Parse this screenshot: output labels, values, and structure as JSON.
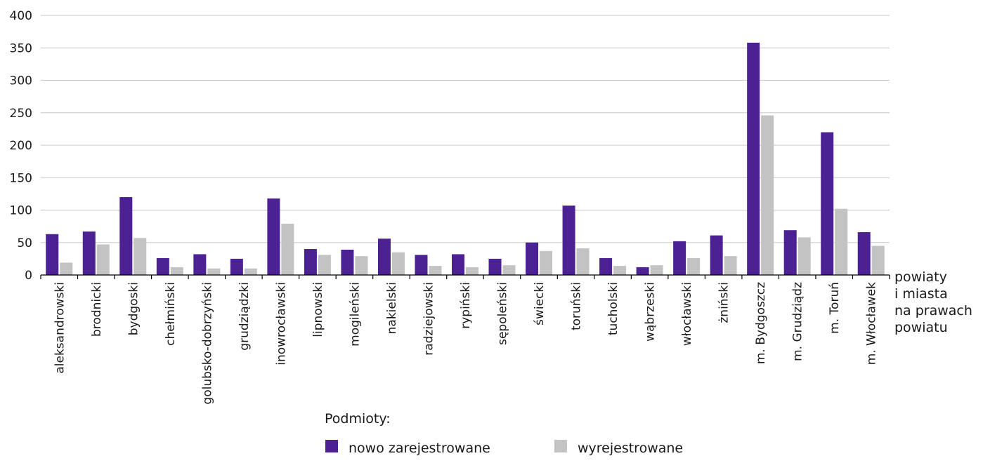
{
  "colors": {
    "series_new": "#4b2193",
    "series_removed": "#c3c3c3",
    "grid": "#c8c8c8",
    "axis": "#000000"
  },
  "chart_data": {
    "type": "bar",
    "title": "",
    "xlabel": [
      "powiaty",
      "i miasta",
      "na prawach",
      "powiatu"
    ],
    "ylabel": "",
    "ylim": [
      0,
      400
    ],
    "yticks": [
      0,
      50,
      100,
      150,
      200,
      250,
      300,
      350,
      400
    ],
    "grid": true,
    "legend_position": "bottom",
    "legend_title": "Podmioty:",
    "categories": [
      "aleksandrowski",
      "brodnicki",
      "bydgoski",
      "chełmiński",
      "golubsko-dobrzyński",
      "grudziądzki",
      "inowrocławski",
      "lipnowski",
      "mogileński",
      "nakielski",
      "radziejowski",
      "rypiński",
      "sępoleński",
      "świecki",
      "toruński",
      "tucholski",
      "wąbrzeski",
      "włocławski",
      "żniński",
      "m. Bydgoszcz",
      "m. Grudziądz",
      "m. Toruń",
      "m. Włocławek"
    ],
    "series": [
      {
        "name": "nowo zarejestrowane",
        "values": [
          63,
          67,
          120,
          26,
          32,
          25,
          118,
          40,
          39,
          56,
          31,
          32,
          25,
          50,
          107,
          26,
          12,
          52,
          61,
          358,
          69,
          220,
          66
        ]
      },
      {
        "name": "wyrejestrowane",
        "values": [
          19,
          47,
          57,
          12,
          10,
          10,
          79,
          31,
          29,
          35,
          14,
          12,
          15,
          37,
          41,
          14,
          15,
          26,
          29,
          246,
          58,
          102,
          45
        ]
      }
    ]
  }
}
